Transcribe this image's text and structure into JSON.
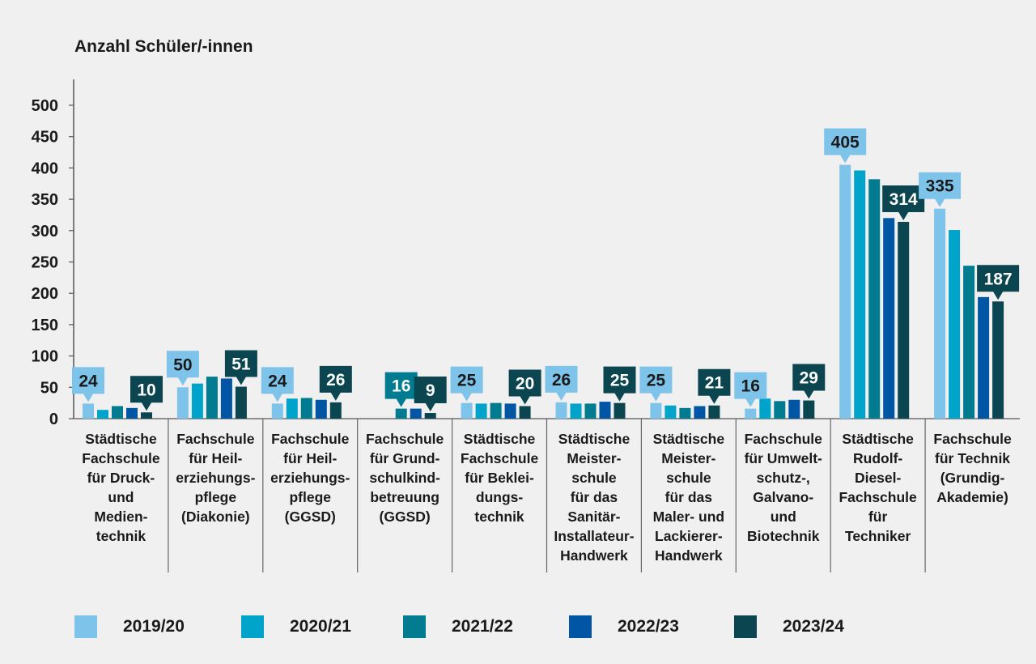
{
  "chart_data": {
    "type": "bar",
    "ylabel": "Anzahl Schüler/-innen",
    "ylim": [
      0,
      500
    ],
    "yticks": [
      0,
      50,
      100,
      150,
      200,
      250,
      300,
      350,
      400,
      450,
      500
    ],
    "grid": false,
    "legend_position": "bottom",
    "categories": [
      [
        "Städtische",
        "Fachschule",
        "für Druck-",
        "und",
        "Medien-",
        "technik"
      ],
      [
        "Fachschule",
        "für Heil-",
        "erziehungs-",
        "pflege",
        "(Diakonie)"
      ],
      [
        "Fachschule",
        "für Heil-",
        "erziehungs-",
        "pflege",
        "(GGSD)"
      ],
      [
        "Fachschule",
        "für Grund-",
        "schulkind-",
        "betreuung",
        "(GGSD)"
      ],
      [
        "Städtische",
        "Fachschule",
        "für Beklei-",
        "dungs-",
        "technik"
      ],
      [
        "Städtische",
        "Meister-",
        "schule",
        "für das",
        "Sanitär-",
        "Installateur-",
        "Handwerk"
      ],
      [
        "Städtische",
        "Meister-",
        "schule",
        "für das",
        "Maler- und",
        "Lackierer-",
        "Handwerk"
      ],
      [
        "Fachschule",
        "für Umwelt-",
        "schutz-,",
        "Galvano-",
        "und",
        "Biotechnik"
      ],
      [
        "Städtische",
        "Rudolf-",
        "Diesel-",
        "Fachschule",
        "für",
        "Techniker"
      ],
      [
        "Fachschule",
        "für Technik",
        "(Grundig-",
        "Akademie)"
      ]
    ],
    "series": [
      {
        "name": "2019/20",
        "color": "#7ec4ea",
        "values": [
          24,
          50,
          24,
          null,
          25,
          26,
          25,
          16,
          405,
          335
        ]
      },
      {
        "name": "2020/21",
        "color": "#00a3c9",
        "values": [
          14,
          56,
          32,
          null,
          24,
          24,
          21,
          32,
          396,
          301
        ]
      },
      {
        "name": "2021/22",
        "color": "#007b8f",
        "values": [
          20,
          67,
          33,
          16,
          25,
          24,
          17,
          28,
          382,
          244
        ]
      },
      {
        "name": "2022/23",
        "color": "#0055a5",
        "values": [
          17,
          64,
          30,
          16,
          24,
          27,
          20,
          30,
          320,
          194
        ]
      },
      {
        "name": "2023/24",
        "color": "#0a4550",
        "values": [
          10,
          51,
          26,
          9,
          20,
          25,
          21,
          29,
          314,
          187
        ]
      }
    ],
    "callouts": [
      {
        "category": 0,
        "series": 0,
        "text": "24"
      },
      {
        "category": 0,
        "series": 4,
        "text": "10"
      },
      {
        "category": 1,
        "series": 0,
        "text": "50"
      },
      {
        "category": 1,
        "series": 4,
        "text": "51"
      },
      {
        "category": 2,
        "series": 0,
        "text": "24"
      },
      {
        "category": 2,
        "series": 4,
        "text": "26"
      },
      {
        "category": 3,
        "series": 2,
        "text": "16"
      },
      {
        "category": 3,
        "series": 4,
        "text": "9"
      },
      {
        "category": 4,
        "series": 0,
        "text": "25"
      },
      {
        "category": 4,
        "series": 4,
        "text": "20"
      },
      {
        "category": 5,
        "series": 0,
        "text": "26"
      },
      {
        "category": 5,
        "series": 4,
        "text": "25"
      },
      {
        "category": 6,
        "series": 0,
        "text": "25"
      },
      {
        "category": 6,
        "series": 4,
        "text": "21"
      },
      {
        "category": 7,
        "series": 0,
        "text": "16"
      },
      {
        "category": 7,
        "series": 4,
        "text": "29"
      },
      {
        "category": 8,
        "series": 0,
        "text": "405"
      },
      {
        "category": 8,
        "series": 4,
        "text": "314"
      },
      {
        "category": 9,
        "series": 0,
        "text": "335"
      },
      {
        "category": 9,
        "series": 4,
        "text": "187"
      }
    ]
  }
}
